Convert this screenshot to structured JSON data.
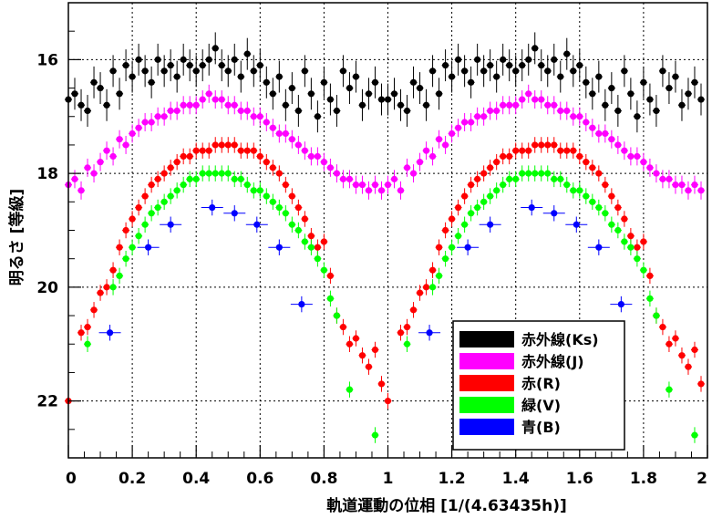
{
  "chart_data": {
    "type": "scatter",
    "title": "",
    "xlabel": "軌道運動の位相 [1/(4.63435h)]",
    "ylabel": "明るさ [等級]",
    "xlim": [
      0,
      2
    ],
    "ylim": [
      23,
      15
    ],
    "y_inverted": true,
    "grid": true,
    "legend_position": "bottom-right",
    "x_ticks": [
      "0",
      "0.2",
      "0.4",
      "0.6",
      "0.8",
      "1",
      "1.2",
      "1.4",
      "1.6",
      "1.8",
      "2"
    ],
    "y_ticks": [
      "16",
      "18",
      "20",
      "22"
    ],
    "series": [
      {
        "name": "赤外線(Ks)",
        "color": "#000000",
        "x": [
          0.0,
          0.02,
          0.04,
          0.06,
          0.08,
          0.1,
          0.12,
          0.14,
          0.16,
          0.18,
          0.2,
          0.22,
          0.24,
          0.26,
          0.28,
          0.3,
          0.32,
          0.34,
          0.36,
          0.38,
          0.4,
          0.42,
          0.44,
          0.46,
          0.48,
          0.5,
          0.52,
          0.54,
          0.56,
          0.58,
          0.6,
          0.62,
          0.64,
          0.66,
          0.68,
          0.7,
          0.72,
          0.74,
          0.76,
          0.78,
          0.8,
          0.82,
          0.84,
          0.86,
          0.88,
          0.9,
          0.92,
          0.94,
          0.96,
          0.98,
          1.0,
          1.02,
          1.04,
          1.06,
          1.08,
          1.1,
          1.12,
          1.14,
          1.16,
          1.18,
          1.2,
          1.22,
          1.24,
          1.26,
          1.28,
          1.3,
          1.32,
          1.34,
          1.36,
          1.38,
          1.4,
          1.42,
          1.44,
          1.46,
          1.48,
          1.5,
          1.52,
          1.54,
          1.56,
          1.58,
          1.6,
          1.62,
          1.64,
          1.66,
          1.68,
          1.7,
          1.72,
          1.74,
          1.76,
          1.78,
          1.8,
          1.82,
          1.84,
          1.86,
          1.88,
          1.9,
          1.92,
          1.94,
          1.96,
          1.98
        ],
        "y": [
          16.7,
          16.6,
          16.8,
          16.9,
          16.4,
          16.5,
          16.8,
          16.2,
          16.6,
          16.1,
          16.3,
          16.0,
          16.2,
          16.4,
          16.0,
          16.2,
          16.1,
          16.3,
          16.0,
          16.1,
          16.2,
          16.1,
          16.0,
          15.8,
          16.1,
          16.2,
          16.0,
          16.3,
          15.9,
          16.2,
          16.1,
          16.4,
          16.6,
          16.3,
          16.8,
          16.5,
          16.9,
          16.2,
          16.6,
          17.0,
          16.4,
          16.7,
          16.9,
          16.2,
          16.5,
          16.3,
          16.8,
          16.6,
          16.4,
          16.7,
          16.7,
          16.6,
          16.8,
          16.9,
          16.4,
          16.5,
          16.8,
          16.2,
          16.6,
          16.1,
          16.3,
          16.0,
          16.2,
          16.4,
          16.0,
          16.2,
          16.1,
          16.3,
          16.0,
          16.1,
          16.2,
          16.1,
          16.0,
          15.8,
          16.1,
          16.2,
          16.0,
          16.3,
          15.9,
          16.2,
          16.1,
          16.4,
          16.6,
          16.3,
          16.8,
          16.5,
          16.9,
          16.2,
          16.6,
          17.0,
          16.4,
          16.7,
          16.9,
          16.2,
          16.5,
          16.3,
          16.8,
          16.6,
          16.4,
          16.7
        ]
      },
      {
        "name": "赤外線(J)",
        "color": "#ff00ff",
        "x": [
          0.0,
          0.02,
          0.04,
          0.06,
          0.08,
          0.1,
          0.12,
          0.14,
          0.16,
          0.18,
          0.2,
          0.22,
          0.24,
          0.26,
          0.28,
          0.3,
          0.32,
          0.34,
          0.36,
          0.38,
          0.4,
          0.42,
          0.44,
          0.46,
          0.48,
          0.5,
          0.52,
          0.54,
          0.56,
          0.58,
          0.6,
          0.62,
          0.64,
          0.66,
          0.68,
          0.7,
          0.72,
          0.74,
          0.76,
          0.78,
          0.8,
          0.82,
          0.84,
          0.86,
          0.88,
          0.9,
          0.92,
          0.94,
          0.96,
          0.98,
          1.0,
          1.02,
          1.04,
          1.06,
          1.08,
          1.1,
          1.12,
          1.14,
          1.16,
          1.18,
          1.2,
          1.22,
          1.24,
          1.26,
          1.28,
          1.3,
          1.32,
          1.34,
          1.36,
          1.38,
          1.4,
          1.42,
          1.44,
          1.46,
          1.48,
          1.5,
          1.52,
          1.54,
          1.56,
          1.58,
          1.6,
          1.62,
          1.64,
          1.66,
          1.68,
          1.7,
          1.72,
          1.74,
          1.76,
          1.78,
          1.8,
          1.82,
          1.84,
          1.86,
          1.88,
          1.9,
          1.92,
          1.94,
          1.96,
          1.98
        ],
        "y": [
          18.2,
          18.1,
          18.3,
          17.9,
          18.0,
          17.8,
          17.6,
          17.7,
          17.4,
          17.5,
          17.3,
          17.2,
          17.1,
          17.1,
          17.0,
          17.0,
          16.9,
          16.9,
          16.8,
          16.8,
          16.8,
          16.7,
          16.6,
          16.7,
          16.7,
          16.8,
          16.8,
          16.9,
          16.9,
          17.0,
          17.0,
          17.1,
          17.2,
          17.3,
          17.3,
          17.4,
          17.5,
          17.6,
          17.7,
          17.7,
          17.8,
          17.9,
          18.0,
          18.1,
          18.1,
          18.2,
          18.2,
          18.3,
          18.2,
          18.3,
          18.2,
          18.1,
          18.3,
          17.9,
          18.0,
          17.8,
          17.6,
          17.7,
          17.4,
          17.5,
          17.3,
          17.2,
          17.1,
          17.1,
          17.0,
          17.0,
          16.9,
          16.9,
          16.8,
          16.8,
          16.8,
          16.7,
          16.6,
          16.7,
          16.7,
          16.8,
          16.8,
          16.9,
          16.9,
          17.0,
          17.0,
          17.1,
          17.2,
          17.3,
          17.3,
          17.4,
          17.5,
          17.6,
          17.7,
          17.7,
          17.8,
          17.9,
          18.0,
          18.1,
          18.1,
          18.2,
          18.2,
          18.3,
          18.2,
          18.3
        ]
      },
      {
        "name": "赤(R)",
        "color": "#ff0000",
        "x": [
          0.0,
          0.04,
          0.06,
          0.08,
          0.1,
          0.12,
          0.14,
          0.16,
          0.18,
          0.2,
          0.22,
          0.24,
          0.26,
          0.28,
          0.3,
          0.32,
          0.34,
          0.36,
          0.38,
          0.4,
          0.42,
          0.44,
          0.46,
          0.48,
          0.5,
          0.52,
          0.54,
          0.56,
          0.58,
          0.6,
          0.62,
          0.64,
          0.66,
          0.68,
          0.7,
          0.72,
          0.74,
          0.76,
          0.78,
          0.8,
          0.82,
          0.84,
          0.86,
          0.88,
          0.9,
          0.92,
          0.94,
          0.96,
          0.98,
          1.0,
          1.04,
          1.06,
          1.08,
          1.1,
          1.12,
          1.14,
          1.16,
          1.18,
          1.2,
          1.22,
          1.24,
          1.26,
          1.28,
          1.3,
          1.32,
          1.34,
          1.36,
          1.38,
          1.4,
          1.42,
          1.44,
          1.46,
          1.48,
          1.5,
          1.52,
          1.54,
          1.56,
          1.58,
          1.6,
          1.62,
          1.64,
          1.66,
          1.68,
          1.7,
          1.72,
          1.74,
          1.76,
          1.78,
          1.8,
          1.82,
          1.84,
          1.86,
          1.88,
          1.9,
          1.92,
          1.94,
          1.96,
          1.98
        ],
        "y": [
          22.0,
          20.8,
          20.7,
          20.4,
          20.1,
          20.0,
          19.7,
          19.3,
          19.0,
          18.8,
          18.6,
          18.4,
          18.2,
          18.1,
          18.0,
          17.9,
          17.8,
          17.7,
          17.7,
          17.6,
          17.6,
          17.6,
          17.5,
          17.5,
          17.5,
          17.5,
          17.6,
          17.6,
          17.6,
          17.7,
          17.8,
          17.9,
          18.0,
          18.2,
          18.4,
          18.6,
          18.8,
          19.1,
          19.3,
          19.2,
          19.8,
          20.5,
          20.7,
          21.0,
          20.9,
          21.2,
          21.4,
          21.1,
          21.7,
          22.0,
          20.8,
          20.7,
          20.4,
          20.1,
          20.0,
          19.7,
          19.3,
          19.0,
          18.8,
          18.6,
          18.4,
          18.2,
          18.1,
          18.0,
          17.9,
          17.8,
          17.7,
          17.7,
          17.6,
          17.6,
          17.6,
          17.5,
          17.5,
          17.5,
          17.5,
          17.6,
          17.6,
          17.6,
          17.7,
          17.8,
          17.9,
          18.0,
          18.2,
          18.4,
          18.6,
          18.8,
          19.1,
          19.3,
          19.2,
          19.8,
          20.5,
          20.7,
          21.0,
          20.9,
          21.2,
          21.4,
          21.1,
          21.7
        ]
      },
      {
        "name": "緑(V)",
        "color": "#00ff00",
        "x": [
          0.06,
          0.14,
          0.16,
          0.18,
          0.2,
          0.22,
          0.24,
          0.26,
          0.28,
          0.3,
          0.32,
          0.34,
          0.36,
          0.38,
          0.4,
          0.42,
          0.44,
          0.46,
          0.48,
          0.5,
          0.52,
          0.54,
          0.56,
          0.58,
          0.6,
          0.62,
          0.64,
          0.66,
          0.68,
          0.7,
          0.72,
          0.74,
          0.76,
          0.78,
          0.8,
          0.82,
          0.84,
          0.88,
          0.96,
          1.06,
          1.14,
          1.16,
          1.18,
          1.2,
          1.22,
          1.24,
          1.26,
          1.28,
          1.3,
          1.32,
          1.34,
          1.36,
          1.38,
          1.4,
          1.42,
          1.44,
          1.46,
          1.48,
          1.5,
          1.52,
          1.54,
          1.56,
          1.58,
          1.6,
          1.62,
          1.64,
          1.66,
          1.68,
          1.7,
          1.72,
          1.74,
          1.76,
          1.78,
          1.8,
          1.82,
          1.84,
          1.88,
          1.96
        ],
        "y": [
          21.0,
          20.0,
          19.8,
          19.5,
          19.3,
          19.1,
          18.9,
          18.7,
          18.6,
          18.5,
          18.4,
          18.3,
          18.2,
          18.1,
          18.1,
          18.0,
          18.0,
          18.0,
          18.0,
          18.0,
          18.1,
          18.1,
          18.2,
          18.3,
          18.3,
          18.4,
          18.5,
          18.6,
          18.7,
          18.9,
          19.0,
          19.2,
          19.3,
          19.5,
          19.7,
          20.2,
          20.5,
          21.8,
          22.6,
          21.0,
          20.0,
          19.8,
          19.5,
          19.3,
          19.1,
          18.9,
          18.7,
          18.6,
          18.5,
          18.4,
          18.3,
          18.2,
          18.1,
          18.1,
          18.0,
          18.0,
          18.0,
          18.0,
          18.0,
          18.1,
          18.1,
          18.2,
          18.3,
          18.3,
          18.4,
          18.5,
          18.6,
          18.7,
          18.9,
          19.0,
          19.2,
          19.3,
          19.5,
          19.7,
          20.2,
          20.5,
          21.8,
          22.6
        ]
      },
      {
        "name": "青(B)",
        "color": "#0000ff",
        "x": [
          0.13,
          0.25,
          0.32,
          0.45,
          0.52,
          0.59,
          0.66,
          0.73,
          1.13,
          1.25,
          1.32,
          1.45,
          1.52,
          1.59,
          1.66,
          1.73
        ],
        "y": [
          20.8,
          19.3,
          18.9,
          18.6,
          18.7,
          18.9,
          19.3,
          20.3,
          20.8,
          19.3,
          18.9,
          18.6,
          18.7,
          18.9,
          19.3,
          20.3
        ]
      }
    ]
  }
}
